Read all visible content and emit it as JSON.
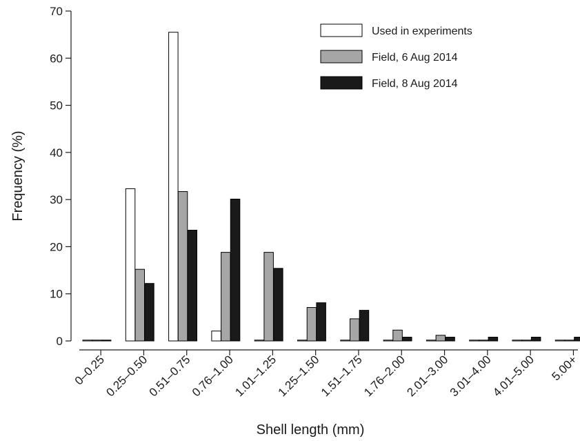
{
  "chart_data": {
    "type": "bar",
    "xlabel": "Shell length (mm)",
    "ylabel": "Frequency (%)",
    "ylim": [
      0,
      70
    ],
    "yticks": [
      0,
      10,
      20,
      30,
      40,
      50,
      60,
      70
    ],
    "legend_position": "top-right",
    "grid": false,
    "categories": [
      "0–0.25",
      "0.25–0.50",
      "0.51–0.75",
      "0.76–1.00",
      "1.01–1.25",
      "1.25–1.50",
      "1.51–1.75",
      "1.76–2.00",
      "2.01–3.00",
      "3.01–4.00",
      "4.01–5.00",
      "5.00+"
    ],
    "series": [
      {
        "name": "Used in experiments",
        "color": "#ffffff",
        "values": [
          0,
          32.3,
          65.5,
          2.1,
          0,
          0,
          0,
          0,
          0,
          0,
          0,
          0
        ]
      },
      {
        "name": "Field, 6 Aug 2014",
        "color": "#a6a6a6",
        "values": [
          0,
          15.2,
          31.7,
          18.8,
          18.8,
          7.1,
          4.7,
          2.3,
          1.2,
          0,
          0,
          0
        ]
      },
      {
        "name": "Field, 8 Aug 2014",
        "color": "#1a1a1a",
        "values": [
          0,
          12.2,
          23.5,
          30.1,
          15.4,
          8.1,
          6.5,
          0.8,
          0.8,
          0.8,
          0.8,
          0.8
        ]
      }
    ]
  }
}
